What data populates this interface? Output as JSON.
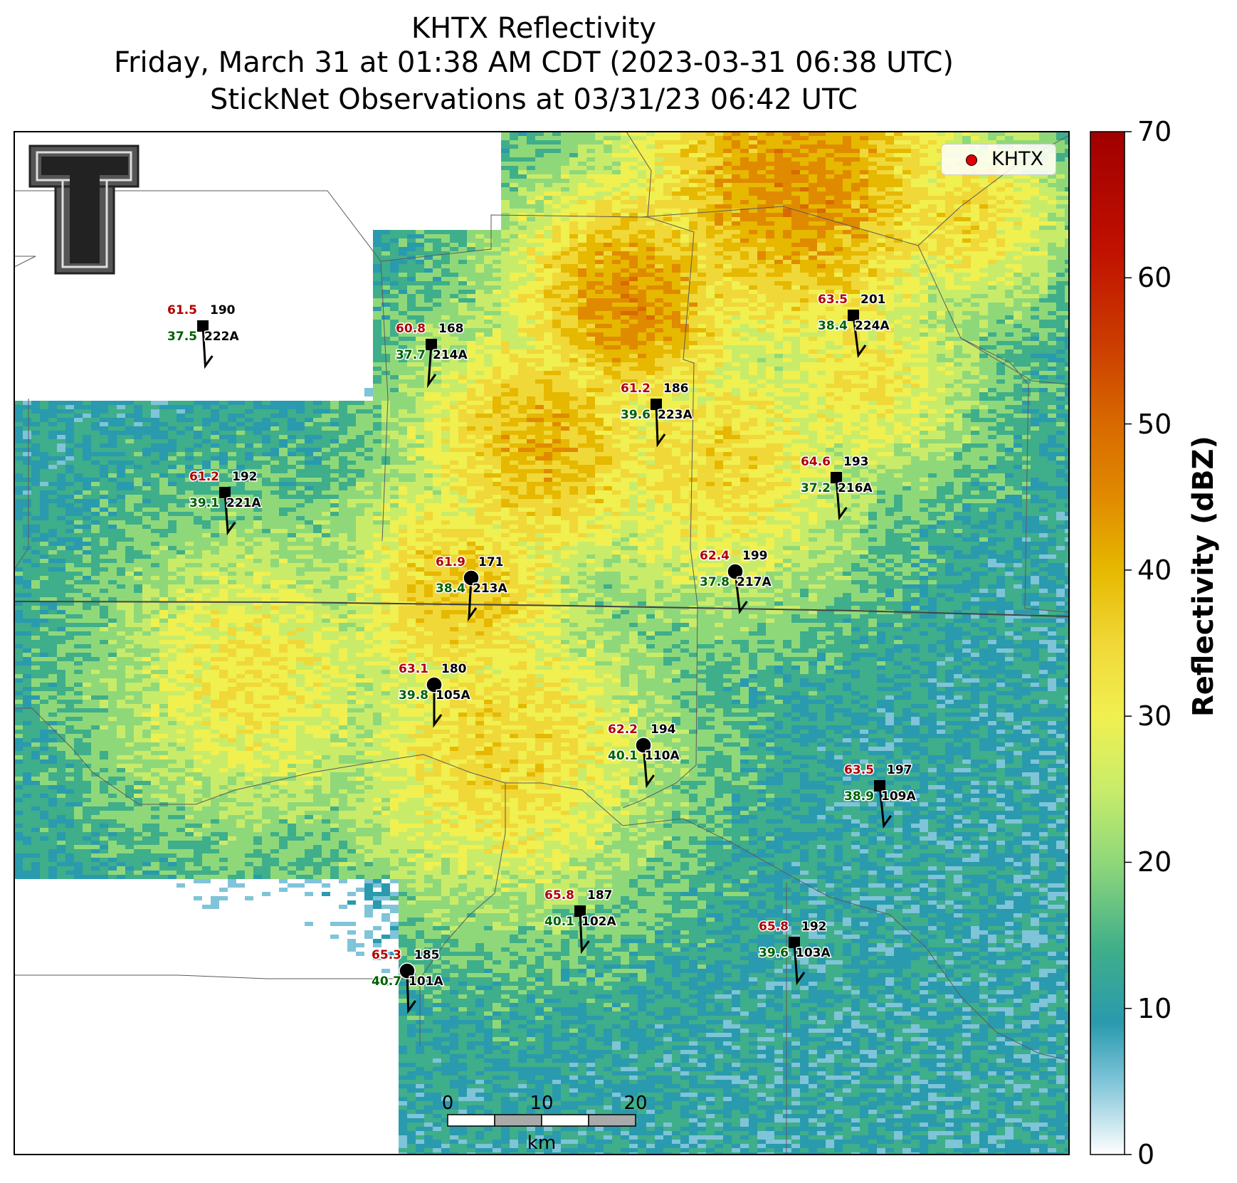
{
  "title": {
    "line1": "KHTX Reflectivity",
    "line2": "Friday, March 31 at 01:38 AM CDT (2023-03-31 06:38 UTC)",
    "line3": "StickNet Observations at 03/31/23 06:42 UTC"
  },
  "legend": {
    "label": "KHTX",
    "marker_color": "#e00000"
  },
  "colorbar": {
    "label": "Reflectivity (dBZ)",
    "ticks": [
      "0",
      "10",
      "20",
      "30",
      "40",
      "50",
      "60",
      "70"
    ],
    "range": [
      0,
      70
    ],
    "stops": [
      {
        "v": 0,
        "c": "#ffffff"
      },
      {
        "v": 5,
        "c": "#7fc4d8"
      },
      {
        "v": 9,
        "c": "#2a9aae"
      },
      {
        "v": 14,
        "c": "#3fae8a"
      },
      {
        "v": 20,
        "c": "#8fd87a"
      },
      {
        "v": 25,
        "c": "#c8ec6a"
      },
      {
        "v": 30,
        "c": "#f0f050"
      },
      {
        "v": 35,
        "c": "#f0d838"
      },
      {
        "v": 40,
        "c": "#e6b800"
      },
      {
        "v": 45,
        "c": "#e08a00"
      },
      {
        "v": 50,
        "c": "#d86a00"
      },
      {
        "v": 55,
        "c": "#cc4000"
      },
      {
        "v": 62,
        "c": "#c01000"
      },
      {
        "v": 70,
        "c": "#a00000"
      }
    ]
  },
  "scalebar": {
    "ticks": [
      "0",
      "10",
      "20"
    ],
    "unit": "km"
  },
  "logo": {
    "text": "T"
  },
  "stations": [
    {
      "id": "222A",
      "temp": "61.5",
      "dew": "37.5",
      "dir": "190",
      "marker": "square"
    },
    {
      "id": "214A",
      "temp": "60.8",
      "dew": "37.7",
      "dir": "168",
      "marker": "square"
    },
    {
      "id": "223A",
      "temp": "61.2",
      "dew": "39.6",
      "dir": "186",
      "marker": "square"
    },
    {
      "id": "224A",
      "temp": "63.5",
      "dew": "38.4",
      "dir": "201",
      "marker": "square"
    },
    {
      "id": "221A",
      "temp": "61.2",
      "dew": "39.1",
      "dir": "192",
      "marker": "square"
    },
    {
      "id": "216A",
      "temp": "64.6",
      "dew": "37.2",
      "dir": "193",
      "marker": "square"
    },
    {
      "id": "213A",
      "temp": "61.9",
      "dew": "38.4",
      "dir": "171",
      "marker": "circle"
    },
    {
      "id": "217A",
      "temp": "62.4",
      "dew": "37.8",
      "dir": "199",
      "marker": "circle"
    },
    {
      "id": "105A",
      "temp": "63.1",
      "dew": "39.8",
      "dir": "180",
      "marker": "circle"
    },
    {
      "id": "110A",
      "temp": "62.2",
      "dew": "40.1",
      "dir": "194",
      "marker": "circle"
    },
    {
      "id": "109A",
      "temp": "63.5",
      "dew": "38.9",
      "dir": "197",
      "marker": "square"
    },
    {
      "id": "102A",
      "temp": "65.8",
      "dew": "40.1",
      "dir": "187",
      "marker": "square"
    },
    {
      "id": "103A",
      "temp": "65.8",
      "dew": "39.6",
      "dir": "192",
      "marker": "square"
    },
    {
      "id": "101A",
      "temp": "65.3",
      "dew": "40.7",
      "dir": "185",
      "marker": "circle"
    }
  ]
}
